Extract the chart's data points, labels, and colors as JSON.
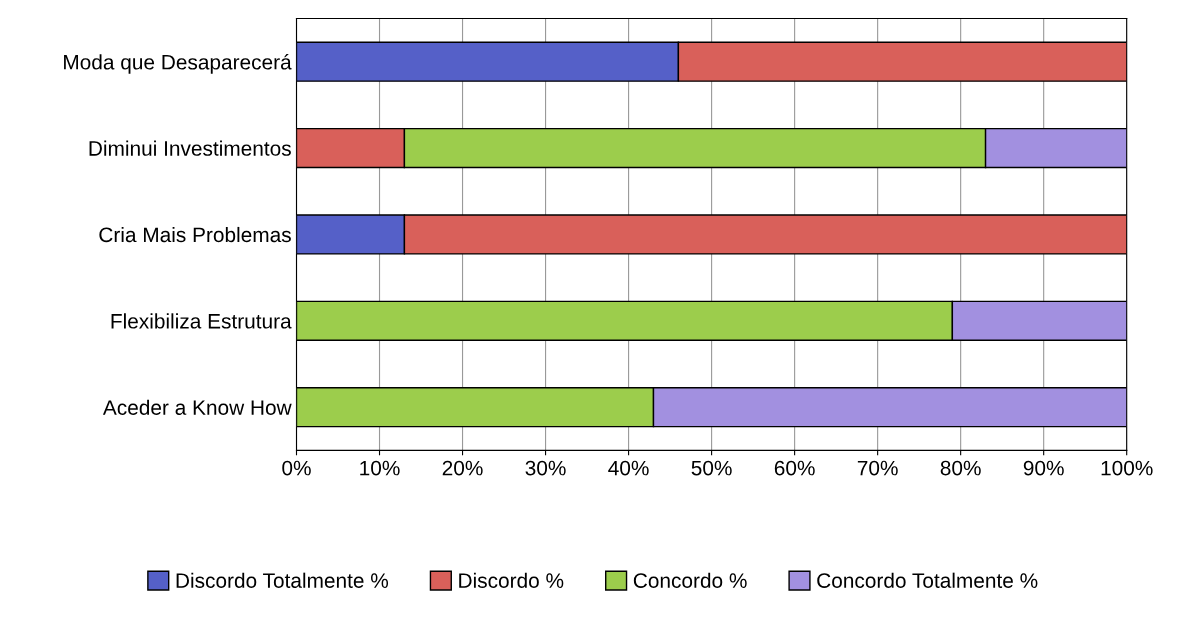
{
  "chart_data": {
    "type": "bar",
    "orientation": "horizontal",
    "stacked": true,
    "categories": [
      "Moda que Desaparecerá",
      "Diminui Investimentos",
      "Cria Mais Problemas",
      "Flexibiliza Estrutura",
      "Aceder a Know How"
    ],
    "series": [
      {
        "name": "Discordo Totalmente %",
        "color": "#5560c8",
        "values": [
          46,
          null,
          13,
          null,
          null
        ]
      },
      {
        "name": "Discordo %",
        "color": "#d9605a",
        "values": [
          54,
          13,
          87,
          null,
          null
        ]
      },
      {
        "name": "Concordo %",
        "color": "#9ccd4c",
        "values": [
          null,
          70,
          null,
          79,
          43
        ]
      },
      {
        "name": "Concordo Totalmente %",
        "color": "#a290e0",
        "values": [
          null,
          17,
          null,
          21,
          57
        ]
      }
    ],
    "xlim": [
      0,
      100
    ],
    "xticks": [
      {
        "value": 0,
        "label": "0%"
      },
      {
        "value": 10,
        "label": "10%"
      },
      {
        "value": 20,
        "label": "20%"
      },
      {
        "value": 30,
        "label": "30%"
      },
      {
        "value": 40,
        "label": "40%"
      },
      {
        "value": 50,
        "label": "50%"
      },
      {
        "value": 60,
        "label": "60%"
      },
      {
        "value": 70,
        "label": "70%"
      },
      {
        "value": 80,
        "label": "80%"
      },
      {
        "value": 90,
        "label": "90%"
      },
      {
        "value": 100,
        "label": "100%"
      }
    ],
    "grid": "x",
    "legend": "bottom"
  }
}
